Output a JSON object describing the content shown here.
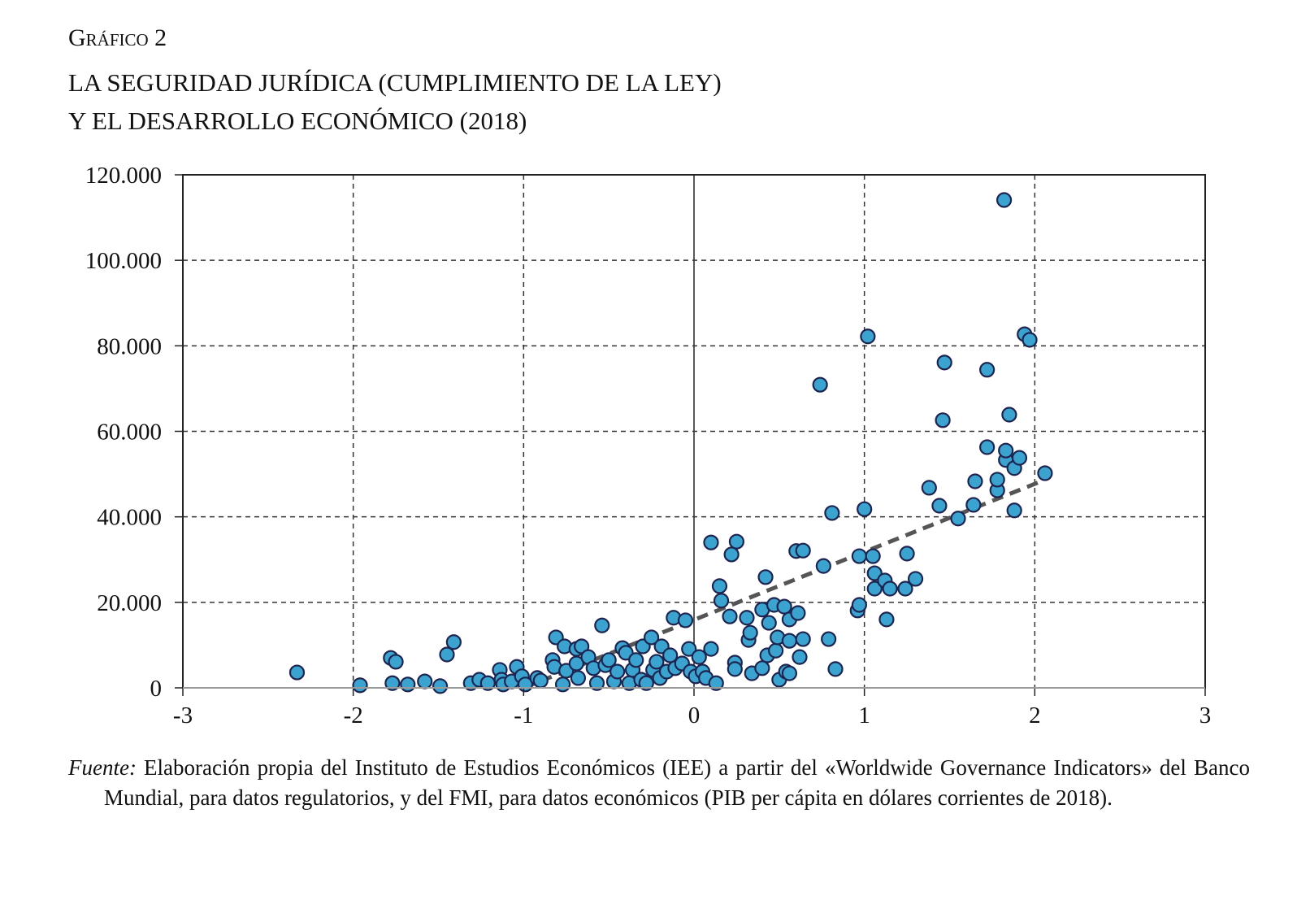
{
  "figure_label": "Gráfico 2",
  "title_line1": "LA SEGURIDAD JURÍDICA (CUMPLIMIENTO DE LA LEY)",
  "title_line2": "Y EL DESARROLLO ECONÓMICO (2018)",
  "source_label": "Fuente:",
  "source_text": " Elaboración propia del Instituto de Estudios Económicos (IEE) a partir del «Worldwide Governance Indicators» del Banco Mundial, para datos regulatorios, y del FMI, para datos económicos (PIB per cápita en dólares corrientes de 2018).",
  "chart_data": {
    "type": "scatter",
    "title": "",
    "xlabel": "",
    "ylabel": "",
    "xlim": [
      -3,
      3
    ],
    "ylim": [
      0,
      120000
    ],
    "xticks": [
      -3,
      -2,
      -1,
      0,
      1,
      2,
      3
    ],
    "yticks": [
      0,
      20000,
      40000,
      60000,
      80000,
      100000,
      120000
    ],
    "xtick_labels": [
      "-3",
      "-2",
      "-1",
      "0",
      "1",
      "2",
      "3"
    ],
    "ytick_labels": [
      "0",
      "20.000",
      "40.000",
      "60.000",
      "80.000",
      "100.000",
      "120.000"
    ],
    "grid": "dashed",
    "marker_color": "#3ba3d0",
    "marker_edge_color": "#1e2450",
    "trendline": {
      "style": "dashed",
      "color": "#555555",
      "from": [
        -1.0,
        0
      ],
      "to": [
        2.05,
        48500
      ]
    },
    "points": [
      [
        -2.33,
        3600
      ],
      [
        -1.96,
        600
      ],
      [
        -1.78,
        7000
      ],
      [
        -1.75,
        6100
      ],
      [
        -1.77,
        1100
      ],
      [
        -1.68,
        800
      ],
      [
        -1.58,
        1500
      ],
      [
        -1.49,
        400
      ],
      [
        -1.45,
        7800
      ],
      [
        -1.41,
        10700
      ],
      [
        -1.31,
        1100
      ],
      [
        -1.26,
        1900
      ],
      [
        -1.21,
        1100
      ],
      [
        -1.14,
        4200
      ],
      [
        -1.13,
        1900
      ],
      [
        -1.12,
        800
      ],
      [
        -1.07,
        1500
      ],
      [
        -1.04,
        4900
      ],
      [
        -1.01,
        2700
      ],
      [
        -0.99,
        800
      ],
      [
        -0.92,
        2300
      ],
      [
        -0.9,
        1700
      ],
      [
        -0.83,
        6500
      ],
      [
        -0.81,
        11800
      ],
      [
        -0.82,
        4900
      ],
      [
        -0.77,
        800
      ],
      [
        -0.76,
        9700
      ],
      [
        -0.75,
        4000
      ],
      [
        -0.69,
        9100
      ],
      [
        -0.66,
        9700
      ],
      [
        -0.69,
        5700
      ],
      [
        -0.68,
        2300
      ],
      [
        -0.62,
        7200
      ],
      [
        -0.59,
        4600
      ],
      [
        -0.57,
        1100
      ],
      [
        -0.54,
        14600
      ],
      [
        -0.52,
        5300
      ],
      [
        -0.5,
        6500
      ],
      [
        -0.47,
        1500
      ],
      [
        -0.45,
        3800
      ],
      [
        -0.42,
        9300
      ],
      [
        -0.4,
        8200
      ],
      [
        -0.38,
        1100
      ],
      [
        -0.36,
        4200
      ],
      [
        -0.34,
        6500
      ],
      [
        -0.31,
        1900
      ],
      [
        -0.3,
        9700
      ],
      [
        -0.28,
        1100
      ],
      [
        -0.25,
        11800
      ],
      [
        -0.24,
        4200
      ],
      [
        -0.22,
        6100
      ],
      [
        -0.2,
        2300
      ],
      [
        -0.19,
        9700
      ],
      [
        -0.16,
        3800
      ],
      [
        -0.14,
        7600
      ],
      [
        -0.12,
        16400
      ],
      [
        -0.11,
        4600
      ],
      [
        -0.07,
        5700
      ],
      [
        -0.05,
        15800
      ],
      [
        -0.03,
        9100
      ],
      [
        -0.02,
        3800
      ],
      [
        0.01,
        2700
      ],
      [
        0.03,
        7200
      ],
      [
        0.05,
        3800
      ],
      [
        0.07,
        2300
      ],
      [
        0.1,
        9100
      ],
      [
        0.1,
        34000
      ],
      [
        0.13,
        1100
      ],
      [
        0.15,
        23800
      ],
      [
        0.16,
        20400
      ],
      [
        0.22,
        31200
      ],
      [
        0.21,
        16700
      ],
      [
        0.25,
        34200
      ],
      [
        0.24,
        5900
      ],
      [
        0.24,
        4400
      ],
      [
        0.31,
        16400
      ],
      [
        0.32,
        11200
      ],
      [
        0.33,
        12900
      ],
      [
        0.34,
        3400
      ],
      [
        0.4,
        18300
      ],
      [
        0.4,
        4600
      ],
      [
        0.42,
        25900
      ],
      [
        0.43,
        7600
      ],
      [
        0.44,
        15200
      ],
      [
        0.47,
        19400
      ],
      [
        0.48,
        8700
      ],
      [
        0.49,
        11800
      ],
      [
        0.5,
        1900
      ],
      [
        0.53,
        19000
      ],
      [
        0.54,
        3800
      ],
      [
        0.56,
        16000
      ],
      [
        0.56,
        11000
      ],
      [
        0.56,
        3400
      ],
      [
        0.6,
        32000
      ],
      [
        0.61,
        17500
      ],
      [
        0.62,
        7200
      ],
      [
        0.64,
        11400
      ],
      [
        0.64,
        32100
      ],
      [
        0.74,
        70900
      ],
      [
        0.76,
        28500
      ],
      [
        0.79,
        11400
      ],
      [
        0.81,
        40900
      ],
      [
        0.83,
        4400
      ],
      [
        0.96,
        18100
      ],
      [
        0.97,
        19400
      ],
      [
        0.97,
        30800
      ],
      [
        1.0,
        41800
      ],
      [
        1.02,
        82200
      ],
      [
        1.05,
        30800
      ],
      [
        1.06,
        26800
      ],
      [
        1.06,
        23200
      ],
      [
        1.12,
        25100
      ],
      [
        1.13,
        16000
      ],
      [
        1.15,
        23200
      ],
      [
        1.24,
        23200
      ],
      [
        1.25,
        31400
      ],
      [
        1.3,
        25500
      ],
      [
        1.38,
        46800
      ],
      [
        1.44,
        42600
      ],
      [
        1.46,
        62600
      ],
      [
        1.47,
        76100
      ],
      [
        1.55,
        39600
      ],
      [
        1.64,
        42800
      ],
      [
        1.65,
        48300
      ],
      [
        1.72,
        74400
      ],
      [
        1.72,
        56300
      ],
      [
        1.78,
        46200
      ],
      [
        1.78,
        48700
      ],
      [
        1.82,
        114100
      ],
      [
        1.83,
        53300
      ],
      [
        1.83,
        55500
      ],
      [
        1.85,
        63900
      ],
      [
        1.88,
        41500
      ],
      [
        1.88,
        51400
      ],
      [
        1.91,
        53800
      ],
      [
        1.94,
        82700
      ],
      [
        1.97,
        81400
      ],
      [
        2.06,
        50200
      ]
    ]
  }
}
